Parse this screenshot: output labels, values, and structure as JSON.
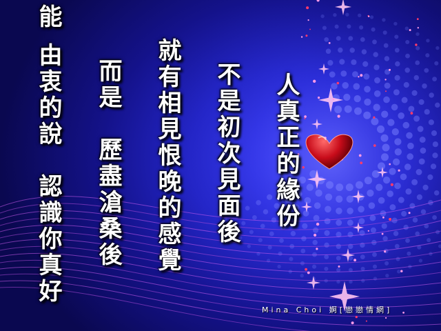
{
  "poem": {
    "line1": "人真正的緣份",
    "line2": "不是初次見面後",
    "line3": "就有相見恨晚的感覺",
    "line4": "而是　歷盡滄桑後",
    "line5": "由衷的說　認識你真好",
    "line6": "能"
  },
  "signature": "Mina Choi 婀[戀戀情網]",
  "colors": {
    "background": "#2325c8",
    "heart": "#c80c1a",
    "text": "#ffffff",
    "sparkle": "#ff7bd8"
  },
  "decor": {
    "heart_icon": "heart-icon",
    "sparkle_icon": "sparkle-icon"
  }
}
